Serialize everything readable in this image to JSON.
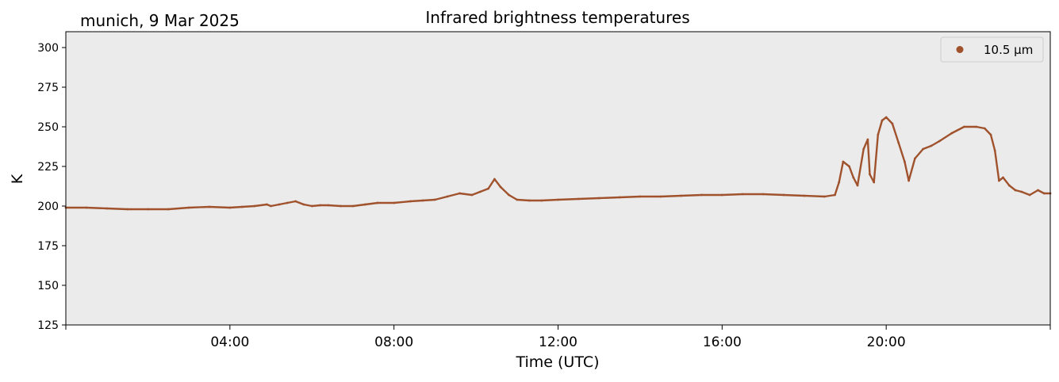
{
  "chart_data": {
    "type": "scatter",
    "title": "Infrared brightness temperatures",
    "subtitle": "munich, 9 Mar 2025",
    "xlabel": "Time (UTC)",
    "ylabel": "K",
    "xlim": [
      0,
      24
    ],
    "ylim": [
      125,
      310
    ],
    "x_ticks": [
      0,
      4,
      8,
      12,
      16,
      20,
      24
    ],
    "x_tick_labels": [
      "",
      "04:00",
      "08:00",
      "12:00",
      "16:00",
      "20:00",
      ""
    ],
    "y_ticks": [
      125,
      150,
      175,
      200,
      225,
      250,
      275,
      300
    ],
    "y_tick_labels": [
      "125",
      "150",
      "175",
      "200",
      "225",
      "250",
      "275",
      "300"
    ],
    "legend_position": "top-right",
    "background_color": "#ebebeb",
    "series": [
      {
        "name": "10.5 µm",
        "color": "#a0522d",
        "x_unit": "hours UTC",
        "x": [
          0.0,
          0.5,
          1.0,
          1.5,
          2.0,
          2.5,
          3.0,
          3.5,
          4.0,
          4.3,
          4.6,
          4.9,
          5.0,
          5.2,
          5.4,
          5.6,
          5.8,
          6.0,
          6.2,
          6.4,
          6.7,
          7.0,
          7.3,
          7.6,
          8.0,
          8.4,
          8.7,
          9.0,
          9.3,
          9.6,
          9.9,
          10.1,
          10.3,
          10.45,
          10.6,
          10.8,
          11.0,
          11.3,
          11.6,
          12.0,
          12.5,
          13.0,
          13.5,
          14.0,
          14.5,
          15.0,
          15.5,
          16.0,
          16.5,
          17.0,
          17.5,
          18.0,
          18.5,
          18.75,
          18.85,
          18.95,
          19.1,
          19.2,
          19.3,
          19.45,
          19.55,
          19.6,
          19.7,
          19.8,
          19.9,
          20.0,
          20.15,
          20.3,
          20.45,
          20.55,
          20.7,
          20.9,
          21.1,
          21.3,
          21.6,
          21.9,
          22.2,
          22.4,
          22.55,
          22.65,
          22.75,
          22.85,
          23.0,
          23.15,
          23.3,
          23.5,
          23.7,
          23.85,
          24.0
        ],
        "y": [
          199,
          199,
          198.5,
          198,
          198,
          198,
          199,
          199.5,
          199,
          199.5,
          200,
          201,
          200,
          201,
          202,
          203,
          201,
          200,
          200.5,
          200.5,
          200,
          200,
          201,
          202,
          202,
          203,
          203.5,
          204,
          206,
          208,
          207,
          209,
          211,
          217,
          212,
          207,
          204,
          203.5,
          203.5,
          204,
          204.5,
          205,
          205.5,
          206,
          206,
          206.5,
          207,
          207,
          207.5,
          207.5,
          207,
          206.5,
          206,
          207,
          215,
          228,
          225,
          218,
          213,
          236,
          242,
          220,
          215,
          245,
          254,
          256,
          252,
          240,
          228,
          216,
          230,
          236,
          238,
          241,
          246,
          250,
          250,
          249,
          245,
          235,
          216,
          218,
          213,
          210,
          209,
          207,
          210,
          208,
          208
        ]
      }
    ]
  }
}
